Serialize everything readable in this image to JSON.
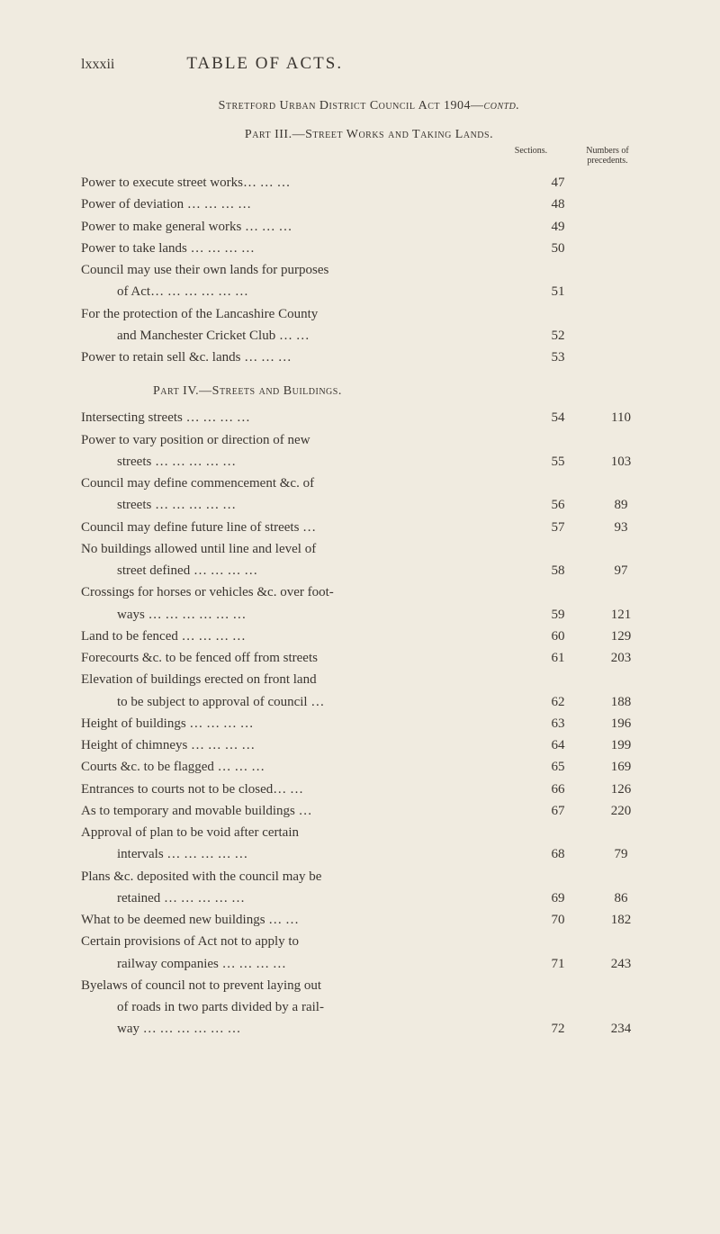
{
  "colors": {
    "background": "#f0ebe0",
    "text": "#3a3530"
  },
  "typography": {
    "body_font_size": 15,
    "title_font_size": 19,
    "small_caps_font_size": 14,
    "header_font_size": 10,
    "line_height": 1.55
  },
  "page_number": "lxxxii",
  "page_title": "TABLE OF ACTS.",
  "act_title_main": "Stretford Urban District Council Act 1904—",
  "act_title_contd": "contd.",
  "part3_title": "Part III.—Street Works and Taking Lands.",
  "col_sections": "Sections.",
  "col_precedents": "Numbers of precedents.",
  "part3_entries": [
    {
      "label": "Power to execute street works…   …   …",
      "section": "47",
      "precedent": ""
    },
    {
      "label": "Power of deviation      …   …   …   …",
      "section": "48",
      "precedent": ""
    },
    {
      "label": "Power to make general works …   …   …",
      "section": "49",
      "precedent": ""
    },
    {
      "label": "Power to take lands     …   …   …   …",
      "section": "50",
      "precedent": ""
    },
    {
      "label": "Council may use their own lands for purposes",
      "section": "",
      "precedent": ""
    },
    {
      "label": "of Act…   …   …   …   …   …",
      "section": "51",
      "precedent": "",
      "continuation": true
    },
    {
      "label": "For the protection of the Lancashire County",
      "section": "",
      "precedent": ""
    },
    {
      "label": "and Manchester Cricket Club    …   …",
      "section": "52",
      "precedent": "",
      "continuation": true
    },
    {
      "label": "Power to retain sell &c. lands …   …   …",
      "section": "53",
      "precedent": ""
    }
  ],
  "part4_title": "Part IV.—Streets and Buildings.",
  "part4_entries": [
    {
      "label": "Intersecting streets    …   …   …   …",
      "section": "54",
      "precedent": "110"
    },
    {
      "label": "Power to vary position or direction of new",
      "section": "",
      "precedent": ""
    },
    {
      "label": "streets        …   …   …   …   …",
      "section": "55",
      "precedent": "103",
      "continuation": true
    },
    {
      "label": "Council may define commencement &c. of",
      "section": "",
      "precedent": ""
    },
    {
      "label": "streets …   …   …        …   …",
      "section": "56",
      "precedent": "89",
      "continuation": true
    },
    {
      "label": "Council may define future line of streets  …",
      "section": "57",
      "precedent": "93"
    },
    {
      "label": "No buildings allowed until line and level of",
      "section": "",
      "precedent": ""
    },
    {
      "label": "street defined       …   …   …   …",
      "section": "58",
      "precedent": "97",
      "continuation": true
    },
    {
      "label": "Crossings for horses or vehicles &c. over foot-",
      "section": "",
      "precedent": ""
    },
    {
      "label": "ways …   …   …   …   …   …",
      "section": "59",
      "precedent": "121",
      "continuation": true
    },
    {
      "label": "Land to be fenced      …   …   …   …",
      "section": "60",
      "precedent": "129"
    },
    {
      "label": "Forecourts &c. to be fenced off from streets",
      "section": "61",
      "precedent": "203"
    },
    {
      "label": "Elevation of buildings erected on front land",
      "section": "",
      "precedent": ""
    },
    {
      "label": "to be subject to approval of council   …",
      "section": "62",
      "precedent": "188",
      "continuation": true
    },
    {
      "label": "Height of buildings    …   …   …   …",
      "section": "63",
      "precedent": "196"
    },
    {
      "label": "Height of chimneys    …   …   …   …",
      "section": "64",
      "precedent": "199"
    },
    {
      "label": "Courts &c. to be flagged       …   …   …",
      "section": "65",
      "precedent": "169"
    },
    {
      "label": "Entrances to courts not to be closed…   …",
      "section": "66",
      "precedent": "126"
    },
    {
      "label": "As to temporary and movable buildings   …",
      "section": "67",
      "precedent": "220"
    },
    {
      "label": "Approval of plan to be void after certain",
      "section": "",
      "precedent": ""
    },
    {
      "label": "intervals     …   …   …   …   …",
      "section": "68",
      "precedent": "79",
      "continuation": true
    },
    {
      "label": "Plans &c. deposited with the council may be",
      "section": "",
      "precedent": ""
    },
    {
      "label": "retained     …   …   …   …   …",
      "section": "69",
      "precedent": "86",
      "continuation": true
    },
    {
      "label": "What to be deemed new buildings  …   …",
      "section": "70",
      "precedent": "182"
    },
    {
      "label": "Certain provisions of Act not to apply to",
      "section": "",
      "precedent": ""
    },
    {
      "label": "railway companies …   …   …   …",
      "section": "71",
      "precedent": "243",
      "continuation": true
    },
    {
      "label": "Byelaws of council not to prevent laying out",
      "section": "",
      "precedent": ""
    },
    {
      "label": "of roads in two parts divided by a rail-",
      "section": "",
      "precedent": "",
      "continuation": true
    },
    {
      "label": "way …   …   …   …   …   …",
      "section": "72",
      "precedent": "234",
      "continuation": true
    }
  ]
}
